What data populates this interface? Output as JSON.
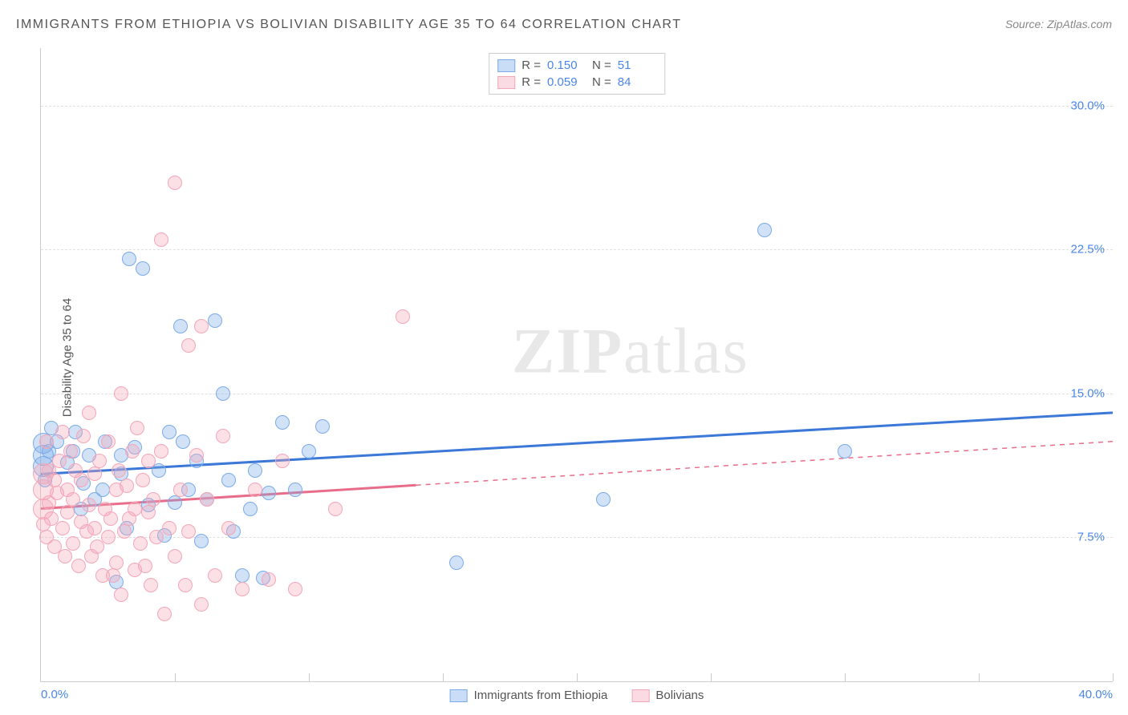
{
  "title": "IMMIGRANTS FROM ETHIOPIA VS BOLIVIAN DISABILITY AGE 35 TO 64 CORRELATION CHART",
  "source_label": "Source: ",
  "source_value": "ZipAtlas.com",
  "ylabel": "Disability Age 35 to 64",
  "watermark_bold": "ZIP",
  "watermark_light": "atlas",
  "chart": {
    "type": "scatter",
    "xlim": [
      0,
      40
    ],
    "ylim": [
      0,
      33
    ],
    "x_ticks": [
      0,
      5,
      10,
      15,
      20,
      25,
      30,
      35,
      40
    ],
    "y_ticks": [
      7.5,
      15.0,
      22.5,
      30.0
    ],
    "x_tick_labels_shown": {
      "0": "0.0%",
      "40": "40.0%"
    },
    "y_tick_labels": {
      "7.5": "7.5%",
      "15.0": "15.0%",
      "22.5": "22.5%",
      "30.0": "30.0%"
    },
    "background_color": "#ffffff",
    "grid_color": "#e0e0e0",
    "axis_color": "#cccccc",
    "tick_label_color": "#4a86e8",
    "axis_label_color": "#555555",
    "point_radius": 8,
    "point_radius_large": 12,
    "line_width": 3,
    "series": [
      {
        "name": "Immigrants from Ethiopia",
        "color_fill": "rgba(123,171,232,0.35)",
        "color_stroke": "#7babe8",
        "line_color": "#3b78d8",
        "R": "0.150",
        "N": "51",
        "trend": {
          "x1": 0,
          "y1": 10.8,
          "x2": 40,
          "y2": 14.0,
          "solid_to_x": 40
        },
        "points": [
          [
            0.1,
            11.8
          ],
          [
            0.1,
            11.2
          ],
          [
            0.1,
            12.4
          ],
          [
            0.15,
            10.5
          ],
          [
            0.3,
            12.0
          ],
          [
            0.4,
            13.2
          ],
          [
            0.6,
            12.5
          ],
          [
            1.0,
            11.4
          ],
          [
            1.2,
            12.0
          ],
          [
            1.3,
            13.0
          ],
          [
            1.5,
            9.0
          ],
          [
            1.6,
            10.3
          ],
          [
            1.8,
            11.8
          ],
          [
            2.0,
            9.5
          ],
          [
            2.3,
            10.0
          ],
          [
            2.4,
            12.5
          ],
          [
            2.8,
            5.2
          ],
          [
            3.0,
            11.8
          ],
          [
            3.0,
            10.8
          ],
          [
            3.2,
            8.0
          ],
          [
            3.3,
            22.0
          ],
          [
            3.5,
            12.2
          ],
          [
            3.8,
            21.5
          ],
          [
            4.0,
            9.2
          ],
          [
            4.4,
            11.0
          ],
          [
            4.6,
            7.6
          ],
          [
            4.8,
            13.0
          ],
          [
            5.0,
            9.3
          ],
          [
            5.2,
            18.5
          ],
          [
            5.3,
            12.5
          ],
          [
            5.5,
            10.0
          ],
          [
            5.8,
            11.5
          ],
          [
            6.0,
            7.3
          ],
          [
            6.2,
            9.5
          ],
          [
            6.5,
            18.8
          ],
          [
            6.8,
            15.0
          ],
          [
            7.0,
            10.5
          ],
          [
            7.2,
            7.8
          ],
          [
            7.5,
            5.5
          ],
          [
            7.8,
            9.0
          ],
          [
            8.0,
            11.0
          ],
          [
            8.3,
            5.4
          ],
          [
            8.5,
            9.8
          ],
          [
            9.0,
            13.5
          ],
          [
            9.5,
            10.0
          ],
          [
            10.0,
            12.0
          ],
          [
            10.5,
            13.3
          ],
          [
            15.5,
            6.2
          ],
          [
            21.0,
            9.5
          ],
          [
            27.0,
            23.5
          ],
          [
            30.0,
            12.0
          ]
        ]
      },
      {
        "name": "Bolivians",
        "color_fill": "rgba(244,166,184,0.35)",
        "color_stroke": "#f4a6b8",
        "line_color": "#e86d8a",
        "R": "0.059",
        "N": "84",
        "trend": {
          "x1": 0,
          "y1": 9.0,
          "x2": 40,
          "y2": 12.5,
          "solid_to_x": 14
        },
        "points": [
          [
            0.1,
            9.0
          ],
          [
            0.1,
            10.0
          ],
          [
            0.1,
            10.8
          ],
          [
            0.1,
            8.2
          ],
          [
            0.2,
            12.5
          ],
          [
            0.2,
            7.5
          ],
          [
            0.3,
            11.0
          ],
          [
            0.3,
            9.3
          ],
          [
            0.4,
            8.5
          ],
          [
            0.5,
            10.5
          ],
          [
            0.5,
            7.0
          ],
          [
            0.6,
            9.8
          ],
          [
            0.7,
            11.5
          ],
          [
            0.8,
            8.0
          ],
          [
            0.8,
            13.0
          ],
          [
            0.9,
            6.5
          ],
          [
            1.0,
            10.0
          ],
          [
            1.0,
            8.8
          ],
          [
            1.1,
            12.0
          ],
          [
            1.2,
            7.2
          ],
          [
            1.2,
            9.5
          ],
          [
            1.3,
            11.0
          ],
          [
            1.4,
            6.0
          ],
          [
            1.5,
            8.3
          ],
          [
            1.5,
            10.5
          ],
          [
            1.6,
            12.8
          ],
          [
            1.7,
            7.8
          ],
          [
            1.8,
            9.2
          ],
          [
            1.8,
            14.0
          ],
          [
            1.9,
            6.5
          ],
          [
            2.0,
            8.0
          ],
          [
            2.0,
            10.8
          ],
          [
            2.1,
            7.0
          ],
          [
            2.2,
            11.5
          ],
          [
            2.3,
            5.5
          ],
          [
            2.4,
            9.0
          ],
          [
            2.5,
            12.5
          ],
          [
            2.5,
            7.5
          ],
          [
            2.6,
            8.5
          ],
          [
            2.7,
            5.5
          ],
          [
            2.8,
            10.0
          ],
          [
            2.8,
            6.2
          ],
          [
            2.9,
            11.0
          ],
          [
            3.0,
            4.5
          ],
          [
            3.0,
            15.0
          ],
          [
            3.1,
            7.8
          ],
          [
            3.2,
            10.2
          ],
          [
            3.3,
            8.5
          ],
          [
            3.4,
            12.0
          ],
          [
            3.5,
            5.8
          ],
          [
            3.5,
            9.0
          ],
          [
            3.6,
            13.2
          ],
          [
            3.7,
            7.2
          ],
          [
            3.8,
            10.5
          ],
          [
            3.9,
            6.0
          ],
          [
            4.0,
            8.8
          ],
          [
            4.0,
            11.5
          ],
          [
            4.1,
            5.0
          ],
          [
            4.2,
            9.5
          ],
          [
            4.3,
            7.5
          ],
          [
            4.5,
            12.0
          ],
          [
            4.5,
            23.0
          ],
          [
            4.6,
            3.5
          ],
          [
            4.8,
            8.0
          ],
          [
            5.0,
            26.0
          ],
          [
            5.0,
            6.5
          ],
          [
            5.2,
            10.0
          ],
          [
            5.4,
            5.0
          ],
          [
            5.5,
            17.5
          ],
          [
            5.5,
            7.8
          ],
          [
            5.8,
            11.8
          ],
          [
            6.0,
            18.5
          ],
          [
            6.0,
            4.0
          ],
          [
            6.2,
            9.5
          ],
          [
            6.5,
            5.5
          ],
          [
            6.8,
            12.8
          ],
          [
            7.0,
            8.0
          ],
          [
            7.5,
            4.8
          ],
          [
            8.0,
            10.0
          ],
          [
            8.5,
            5.3
          ],
          [
            9.0,
            11.5
          ],
          [
            9.5,
            4.8
          ],
          [
            11.0,
            9.0
          ],
          [
            13.5,
            19.0
          ]
        ]
      }
    ],
    "legend_top": {
      "R_label": "R  =",
      "N_label": "N  ="
    },
    "legend_bottom": true
  }
}
